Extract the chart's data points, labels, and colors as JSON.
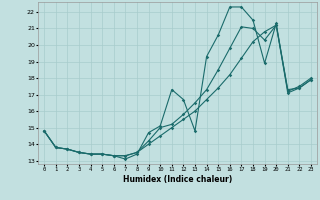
{
  "title": "",
  "xlabel": "Humidex (Indice chaleur)",
  "bg_color": "#c2e0e0",
  "line_color": "#1a6b6b",
  "grid_color": "#a8cccc",
  "xlim": [
    -0.5,
    23.5
  ],
  "ylim": [
    12.8,
    22.6
  ],
  "yticks": [
    13,
    14,
    15,
    16,
    17,
    18,
    19,
    20,
    21,
    22
  ],
  "xticks": [
    0,
    1,
    2,
    3,
    4,
    5,
    6,
    7,
    8,
    9,
    10,
    11,
    12,
    13,
    14,
    15,
    16,
    17,
    18,
    19,
    20,
    21,
    22,
    23
  ],
  "line1_x": [
    0,
    1,
    2,
    3,
    4,
    5,
    6,
    7,
    8,
    9,
    10,
    11,
    12,
    13,
    14,
    15,
    16,
    17,
    18,
    19,
    20,
    21,
    22,
    23
  ],
  "line1_y": [
    14.8,
    13.8,
    13.7,
    13.5,
    13.4,
    13.4,
    13.3,
    13.1,
    13.4,
    14.7,
    15.1,
    17.3,
    16.7,
    14.8,
    19.3,
    20.6,
    22.3,
    22.3,
    21.5,
    18.9,
    21.3,
    17.2,
    17.5,
    18.0
  ],
  "line2_x": [
    0,
    1,
    2,
    3,
    4,
    5,
    6,
    7,
    8,
    9,
    10,
    11,
    12,
    13,
    14,
    15,
    16,
    17,
    18,
    19,
    20,
    21,
    22,
    23
  ],
  "line2_y": [
    14.8,
    13.8,
    13.7,
    13.5,
    13.4,
    13.4,
    13.3,
    13.3,
    13.5,
    14.2,
    15.0,
    15.2,
    15.8,
    16.5,
    17.3,
    18.5,
    19.8,
    21.1,
    21.0,
    20.3,
    21.2,
    17.1,
    17.4,
    17.9
  ],
  "line3_x": [
    0,
    1,
    2,
    3,
    4,
    5,
    6,
    7,
    8,
    9,
    10,
    11,
    12,
    13,
    14,
    15,
    16,
    17,
    18,
    19,
    20,
    21,
    22,
    23
  ],
  "line3_y": [
    14.8,
    13.8,
    13.7,
    13.5,
    13.4,
    13.4,
    13.3,
    13.3,
    13.5,
    14.0,
    14.5,
    15.0,
    15.5,
    16.0,
    16.7,
    17.4,
    18.2,
    19.2,
    20.2,
    20.8,
    21.2,
    17.3,
    17.4,
    17.9
  ]
}
